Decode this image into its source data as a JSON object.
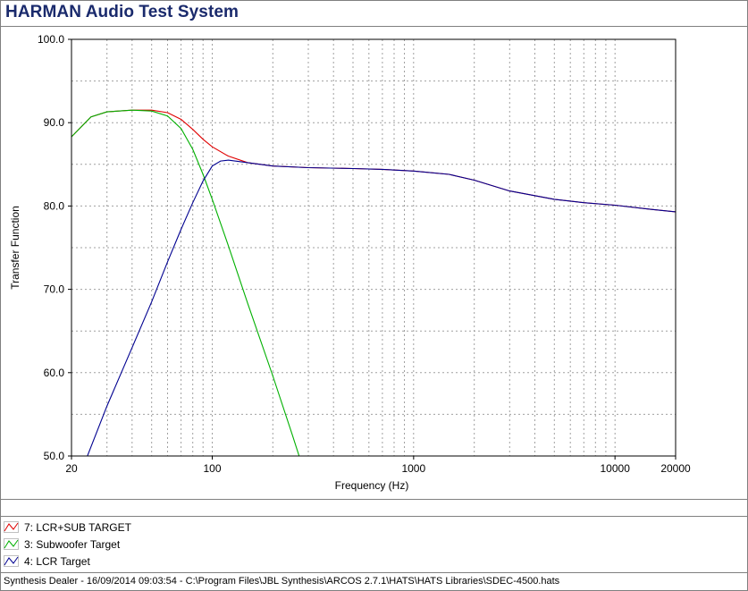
{
  "app": {
    "title": "HARMAN Audio Test System",
    "status": "Synthesis Dealer - 16/09/2014 09:03:54 - C:\\Program Files\\JBL Synthesis\\ARCOS 2.7.1\\HATS\\HATS Libraries\\SDEC-4500.hats"
  },
  "chart_data": {
    "type": "line",
    "xlabel": "Frequency (Hz)",
    "ylabel": "Transfer Function",
    "xscale": "log",
    "xlim": [
      20,
      20000
    ],
    "ylim": [
      50,
      100
    ],
    "x_ticks": [
      20,
      100,
      1000,
      10000,
      20000
    ],
    "x_tick_labels": [
      "20",
      "100",
      "1000",
      "10000",
      "20000"
    ],
    "y_ticks": [
      50,
      60,
      70,
      80,
      90,
      100
    ],
    "y_tick_labels": [
      "50.0",
      "60.0",
      "70.0",
      "80.0",
      "90.0",
      "100.0"
    ],
    "grid": true,
    "legend_position": "bottom",
    "series": [
      {
        "name": "7: LCR+SUB TARGET",
        "color": "#e00000",
        "points": [
          [
            20,
            88.3
          ],
          [
            25,
            90.7
          ],
          [
            30,
            91.3
          ],
          [
            40,
            91.5
          ],
          [
            50,
            91.5
          ],
          [
            60,
            91.2
          ],
          [
            70,
            90.4
          ],
          [
            80,
            89.2
          ],
          [
            90,
            88.0
          ],
          [
            100,
            87.1
          ],
          [
            120,
            86.0
          ],
          [
            150,
            85.2
          ],
          [
            200,
            84.8
          ],
          [
            300,
            84.6
          ],
          [
            500,
            84.5
          ],
          [
            700,
            84.4
          ],
          [
            1000,
            84.2
          ],
          [
            1500,
            83.8
          ],
          [
            2000,
            83.1
          ],
          [
            3000,
            81.8
          ],
          [
            5000,
            80.8
          ],
          [
            7000,
            80.4
          ],
          [
            10000,
            80.1
          ],
          [
            15000,
            79.6
          ],
          [
            20000,
            79.3
          ]
        ]
      },
      {
        "name": "3: Subwoofer Target",
        "color": "#00b000",
        "points": [
          [
            20,
            88.3
          ],
          [
            25,
            90.7
          ],
          [
            30,
            91.3
          ],
          [
            40,
            91.5
          ],
          [
            50,
            91.4
          ],
          [
            60,
            90.8
          ],
          [
            70,
            89.3
          ],
          [
            80,
            86.8
          ],
          [
            90,
            83.8
          ],
          [
            100,
            80.8
          ],
          [
            120,
            75.3
          ],
          [
            150,
            68.3
          ],
          [
            200,
            59.6
          ],
          [
            250,
            52.5
          ],
          [
            270,
            50.0
          ]
        ]
      },
      {
        "name": "4: LCR Target",
        "color": "#000090",
        "points": [
          [
            24,
            50.0
          ],
          [
            30,
            56.0
          ],
          [
            40,
            63.0
          ],
          [
            50,
            68.5
          ],
          [
            60,
            73.3
          ],
          [
            70,
            77.2
          ],
          [
            80,
            80.4
          ],
          [
            90,
            83.0
          ],
          [
            100,
            84.8
          ],
          [
            110,
            85.4
          ],
          [
            120,
            85.5
          ],
          [
            150,
            85.2
          ],
          [
            200,
            84.8
          ],
          [
            300,
            84.6
          ],
          [
            500,
            84.5
          ],
          [
            700,
            84.4
          ],
          [
            1000,
            84.2
          ],
          [
            1500,
            83.8
          ],
          [
            2000,
            83.1
          ],
          [
            3000,
            81.8
          ],
          [
            5000,
            80.8
          ],
          [
            7000,
            80.4
          ],
          [
            10000,
            80.1
          ],
          [
            15000,
            79.6
          ],
          [
            20000,
            79.3
          ]
        ]
      }
    ]
  }
}
